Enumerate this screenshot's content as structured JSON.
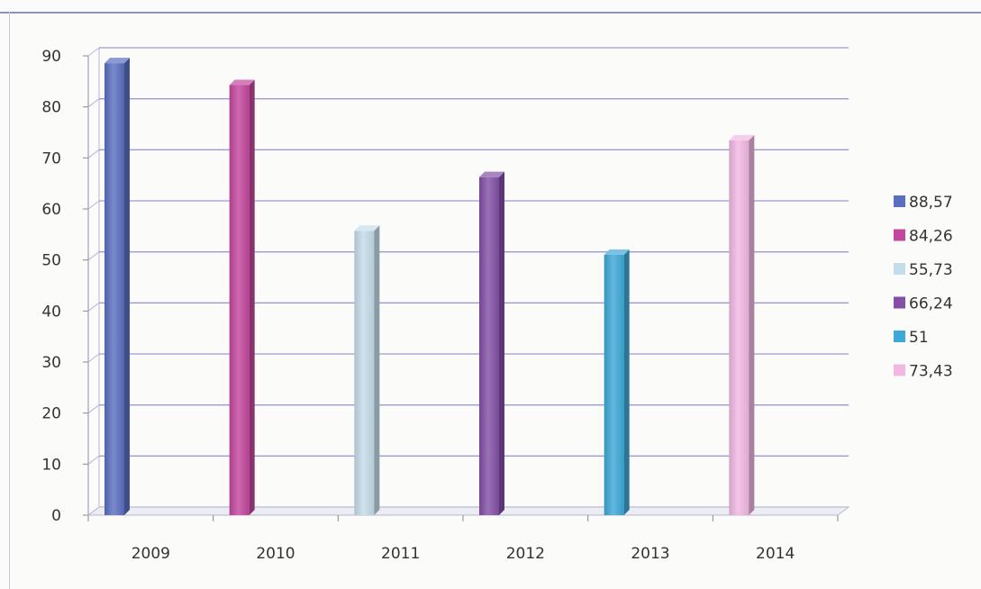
{
  "chart_data": {
    "type": "bar",
    "categories": [
      "2009",
      "2010",
      "2011",
      "2012",
      "2013",
      "2014"
    ],
    "values": [
      88.57,
      84.26,
      55.73,
      66.24,
      51,
      73.43
    ],
    "value_labels": [
      "88,57",
      "84,26",
      "55,73",
      "66,24",
      "51",
      "73,43"
    ],
    "ylim": [
      0,
      90
    ],
    "yticks": [
      0,
      10,
      20,
      30,
      40,
      50,
      60,
      70,
      80,
      90
    ],
    "title": "",
    "xlabel": "",
    "ylabel": "",
    "grid": true,
    "legend_position": "right",
    "colors": [
      "#5b6fc0",
      "#c3479e",
      "#c4dde9",
      "#8250a6",
      "#3ea8d8",
      "#f2b8e3"
    ]
  }
}
